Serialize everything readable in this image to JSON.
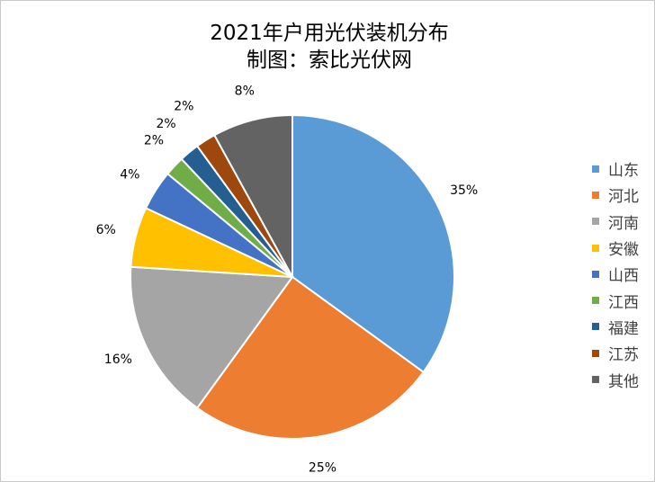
{
  "chart_data": {
    "type": "pie",
    "title": "2021年户用光伏装机分布",
    "subtitle": "制图：索比光伏网",
    "categories": [
      "山东",
      "河北",
      "河南",
      "安徽",
      "山西",
      "江西",
      "福建",
      "江苏",
      "其他"
    ],
    "values": [
      35,
      25,
      16,
      6,
      4,
      2,
      2,
      2,
      8
    ],
    "data_labels": [
      "35%",
      "25%",
      "16%",
      "6%",
      "4%",
      "2%",
      "2%",
      "2%",
      "8%"
    ],
    "colors": [
      "#5B9BD5",
      "#ED7D31",
      "#A5A5A5",
      "#FFC000",
      "#4472C4",
      "#70AD47",
      "#255E91",
      "#9E480E",
      "#636363"
    ],
    "legend_position": "right"
  }
}
